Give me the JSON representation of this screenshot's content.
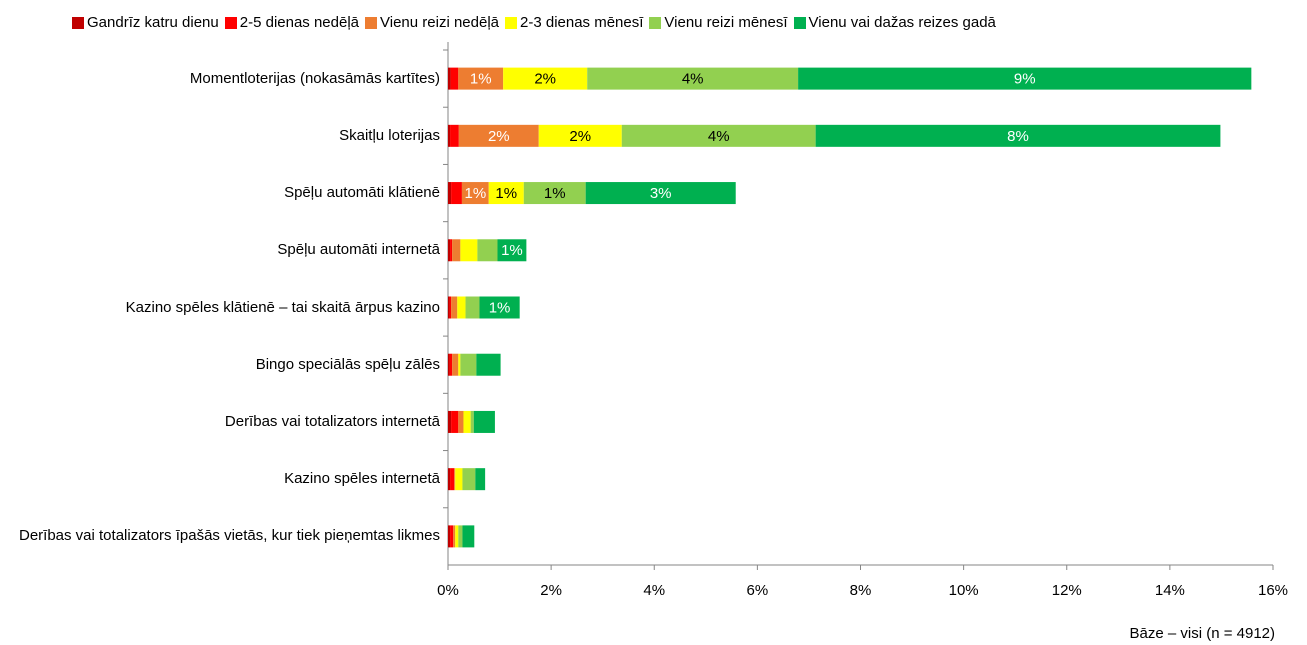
{
  "chart_data": {
    "type": "stacked-barh",
    "categories": [
      "Momentloterijas (nokasāmās kartītes)",
      "Skaitļu loterijas",
      "Spēļu automāti klātienē",
      "Spēļu automāti internetā",
      "Kazino spēles klātienē – tai skaitā ārpus kazino",
      "Bingo speciālās spēļu zālēs",
      "Derības vai totalizators internetā",
      "Kazino spēles internetā",
      "Derības vai totalizators īpašās vietās, kur tiek pieņemtas likmes"
    ],
    "series": [
      {
        "name": "Gandrīz katru dienu",
        "color": "#c00000",
        "label_color": "#ffffff",
        "values": [
          0.05,
          0.04,
          0.06,
          0.04,
          0.03,
          0.03,
          0.06,
          0.04,
          0.04
        ],
        "value_labels": [
          null,
          null,
          null,
          null,
          null,
          null,
          null,
          null,
          null
        ]
      },
      {
        "name": "2-5 dienas nedēļā",
        "color": "#ff0000",
        "label_color": "#ffffff",
        "values": [
          0.15,
          0.17,
          0.21,
          0.04,
          0.03,
          0.05,
          0.14,
          0.08,
          0.06
        ],
        "value_labels": [
          null,
          null,
          null,
          null,
          null,
          null,
          null,
          null,
          null
        ]
      },
      {
        "name": "Vienu reizi nedēļā",
        "color": "#ed7d31",
        "label_color": "#ffffff",
        "values": [
          0.87,
          1.55,
          0.52,
          0.16,
          0.12,
          0.12,
          0.1,
          0.02,
          0.04
        ],
        "value_labels": [
          "1%",
          "2%",
          "1%",
          null,
          null,
          null,
          null,
          null,
          null
        ]
      },
      {
        "name": "2-3 dienas mēnesī",
        "color": "#ffff00",
        "label_color": "#000000",
        "values": [
          1.63,
          1.61,
          0.68,
          0.33,
          0.16,
          0.04,
          0.14,
          0.14,
          0.06
        ],
        "value_labels": [
          "2%",
          "2%",
          "1%",
          null,
          null,
          null,
          null,
          null,
          null
        ]
      },
      {
        "name": "Vienu reizi mēnesī",
        "color": "#92d050",
        "label_color": "#000000",
        "values": [
          4.09,
          3.76,
          1.2,
          0.39,
          0.27,
          0.31,
          0.06,
          0.25,
          0.08
        ],
        "value_labels": [
          "4%",
          "4%",
          "1%",
          null,
          null,
          null,
          null,
          null,
          null
        ]
      },
      {
        "name": "Vienu vai dažas reizes gadā",
        "color": "#00b050",
        "label_color": "#ffffff",
        "values": [
          8.79,
          7.85,
          2.91,
          0.56,
          0.78,
          0.47,
          0.41,
          0.19,
          0.23
        ],
        "value_labels": [
          "9%",
          "8%",
          "3%",
          "1%",
          "1%",
          null,
          null,
          null,
          null
        ]
      }
    ],
    "xlim": [
      0,
      16
    ],
    "xticks": [
      {
        "value": 0,
        "label": "0%"
      },
      {
        "value": 2,
        "label": "2%"
      },
      {
        "value": 4,
        "label": "4%"
      },
      {
        "value": 6,
        "label": "6%"
      },
      {
        "value": 8,
        "label": "8%"
      },
      {
        "value": 10,
        "label": "10%"
      },
      {
        "value": 12,
        "label": "12%"
      },
      {
        "value": 14,
        "label": "14%"
      },
      {
        "value": 16,
        "label": "16%"
      }
    ],
    "legend": "top",
    "note": "Bāze – visi (n = 4912)"
  }
}
